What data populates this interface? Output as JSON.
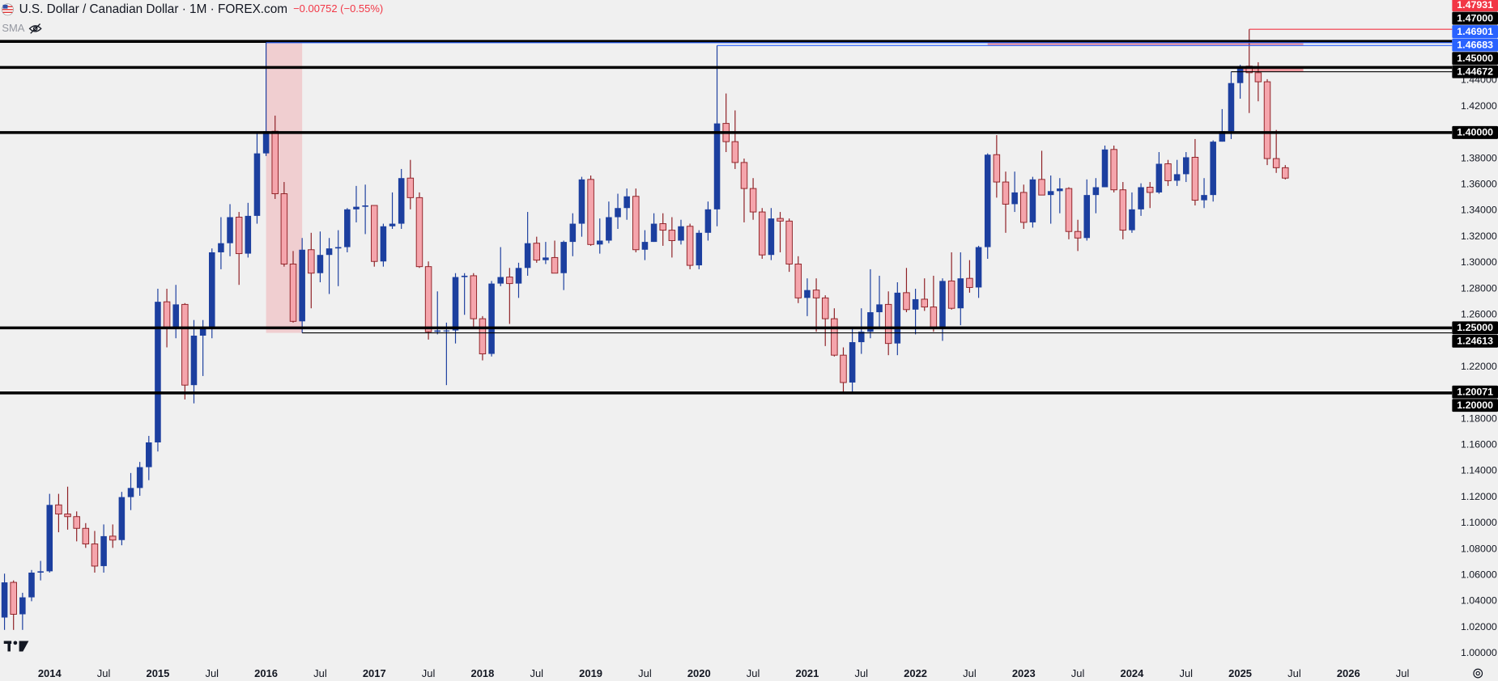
{
  "chart_data": {
    "type": "candlestick",
    "title": "U.S. Dollar / Canadian Dollar · 1M · FOREX.com",
    "subtitle": "−0.00752 (−0.55%)",
    "indicator": "SMA",
    "up_color": "#1c3f9f",
    "down_color": "#f5a5ac",
    "down_border": "#8e1f24",
    "ylim": [
      0.9912,
      1.5018
    ],
    "xlim": [
      "2013-08",
      "2026-12"
    ],
    "x": [
      "2013-08",
      "2013-09",
      "2013-10",
      "2013-11",
      "2013-12",
      "2014-01",
      "2014-02",
      "2014-03",
      "2014-04",
      "2014-05",
      "2014-06",
      "2014-07",
      "2014-08",
      "2014-09",
      "2014-10",
      "2014-11",
      "2014-12",
      "2015-01",
      "2015-02",
      "2015-03",
      "2015-04",
      "2015-05",
      "2015-06",
      "2015-07",
      "2015-08",
      "2015-09",
      "2015-10",
      "2015-11",
      "2015-12",
      "2016-01",
      "2016-02",
      "2016-03",
      "2016-04",
      "2016-05",
      "2016-06",
      "2016-07",
      "2016-08",
      "2016-09",
      "2016-10",
      "2016-11",
      "2016-12",
      "2017-01",
      "2017-02",
      "2017-03",
      "2017-04",
      "2017-05",
      "2017-06",
      "2017-07",
      "2017-08",
      "2017-09",
      "2017-10",
      "2017-11",
      "2017-12",
      "2018-01",
      "2018-02",
      "2018-03",
      "2018-04",
      "2018-05",
      "2018-06",
      "2018-07",
      "2018-08",
      "2018-09",
      "2018-10",
      "2018-11",
      "2018-12",
      "2019-01",
      "2019-02",
      "2019-03",
      "2019-04",
      "2019-05",
      "2019-06",
      "2019-07",
      "2019-08",
      "2019-09",
      "2019-10",
      "2019-11",
      "2019-12",
      "2020-01",
      "2020-02",
      "2020-03",
      "2020-04",
      "2020-05",
      "2020-06",
      "2020-07",
      "2020-08",
      "2020-09",
      "2020-10",
      "2020-11",
      "2020-12",
      "2021-01",
      "2021-02",
      "2021-03",
      "2021-04",
      "2021-05",
      "2021-06",
      "2021-07",
      "2021-08",
      "2021-09",
      "2021-10",
      "2021-11",
      "2021-12",
      "2022-01",
      "2022-02",
      "2022-03",
      "2022-04",
      "2022-05",
      "2022-06",
      "2022-07",
      "2022-08",
      "2022-09",
      "2022-10",
      "2022-11",
      "2022-12",
      "2023-01",
      "2023-02",
      "2023-03",
      "2023-04",
      "2023-05",
      "2023-06",
      "2023-07",
      "2023-08",
      "2023-09",
      "2023-10",
      "2023-11",
      "2023-12",
      "2024-01",
      "2024-02",
      "2024-03",
      "2024-04",
      "2024-05",
      "2024-06",
      "2024-07",
      "2024-08",
      "2024-09",
      "2024-10",
      "2024-11",
      "2024-12",
      "2025-01",
      "2025-02",
      "2025-03",
      "2025-04",
      "2025-05",
      "2025-06"
    ],
    "open": [
      1.0275,
      1.0545,
      1.03,
      1.043,
      1.062,
      1.063,
      1.114,
      1.107,
      1.105,
      1.096,
      1.084,
      1.067,
      1.09,
      1.087,
      1.12,
      1.127,
      1.143,
      1.162,
      1.27,
      1.25,
      1.268,
      1.206,
      1.244,
      1.249,
      1.308,
      1.315,
      1.335,
      1.307,
      1.336,
      1.384,
      1.401,
      1.353,
      1.299,
      1.255,
      1.31,
      1.292,
      1.306,
      1.311,
      1.312,
      1.341,
      1.343,
      1.344,
      1.301,
      1.328,
      1.33,
      1.365,
      1.35,
      1.297,
      1.247,
      1.248,
      1.248,
      1.289,
      1.29,
      1.257,
      1.23,
      1.284,
      1.289,
      1.284,
      1.296,
      1.315,
      1.302,
      1.304,
      1.292,
      1.316,
      1.33,
      1.364,
      1.314,
      1.317,
      1.335,
      1.342,
      1.351,
      1.31,
      1.316,
      1.33,
      1.325,
      1.317,
      1.328,
      1.298,
      1.323,
      1.341,
      1.407,
      1.393,
      1.377,
      1.357,
      1.339,
      1.306,
      1.334,
      1.332,
      1.299,
      1.273,
      1.279,
      1.273,
      1.257,
      1.229,
      1.208,
      1.239,
      1.247,
      1.262,
      1.268,
      1.238,
      1.277,
      1.264,
      1.272,
      1.266,
      1.25,
      1.286,
      1.265,
      1.288,
      1.281,
      1.312,
      1.383,
      1.362,
      1.345,
      1.354,
      1.331,
      1.364,
      1.352,
      1.355,
      1.357,
      1.324,
      1.319,
      1.352,
      1.358,
      1.387,
      1.356,
      1.325,
      1.341,
      1.358,
      1.354,
      1.376,
      1.363,
      1.368,
      1.381,
      1.348,
      1.352,
      1.393,
      1.401,
      1.438,
      1.451,
      1.446,
      1.439,
      1.38,
      1.373
    ],
    "high": [
      1.0612,
      1.056,
      1.0465,
      1.064,
      1.071,
      1.1225,
      1.1225,
      1.128,
      1.109,
      1.1,
      1.094,
      1.099,
      1.099,
      1.124,
      1.1385,
      1.147,
      1.167,
      1.28,
      1.28,
      1.283,
      1.269,
      1.256,
      1.256,
      1.311,
      1.335,
      1.345,
      1.339,
      1.346,
      1.4,
      1.46901,
      1.413,
      1.362,
      1.309,
      1.319,
      1.323,
      1.324,
      1.319,
      1.325,
      1.342,
      1.359,
      1.36,
      1.344,
      1.33,
      1.354,
      1.372,
      1.379,
      1.354,
      1.301,
      1.278,
      1.254,
      1.292,
      1.292,
      1.292,
      1.259,
      1.286,
      1.312,
      1.296,
      1.3,
      1.339,
      1.32,
      1.316,
      1.317,
      1.317,
      1.338,
      1.366,
      1.367,
      1.334,
      1.347,
      1.353,
      1.357,
      1.357,
      1.325,
      1.338,
      1.338,
      1.335,
      1.333,
      1.33,
      1.325,
      1.347,
      1.46683,
      1.43,
      1.417,
      1.38,
      1.365,
      1.342,
      1.342,
      1.339,
      1.334,
      1.305,
      1.288,
      1.288,
      1.275,
      1.265,
      1.235,
      1.249,
      1.265,
      1.295,
      1.29,
      1.278,
      1.285,
      1.296,
      1.28,
      1.288,
      1.29,
      1.288,
      1.308,
      1.308,
      1.302,
      1.313,
      1.384,
      1.398,
      1.37,
      1.37,
      1.36,
      1.366,
      1.386,
      1.367,
      1.365,
      1.358,
      1.333,
      1.364,
      1.365,
      1.39,
      1.39,
      1.362,
      1.354,
      1.361,
      1.362,
      1.385,
      1.379,
      1.379,
      1.385,
      1.395,
      1.365,
      1.394,
      1.418,
      1.44672,
      1.452,
      1.47931,
      1.454,
      1.441,
      1.402,
      1.375
    ],
    "low": [
      1.018,
      1.018,
      1.018,
      1.04,
      1.056,
      1.062,
      1.093,
      1.095,
      1.086,
      1.081,
      1.062,
      1.062,
      1.081,
      1.083,
      1.11,
      1.121,
      1.133,
      1.155,
      1.235,
      1.242,
      1.195,
      1.192,
      1.213,
      1.242,
      1.295,
      1.305,
      1.283,
      1.304,
      1.33,
      1.382,
      1.349,
      1.297,
      1.254,
      1.24613,
      1.265,
      1.285,
      1.276,
      1.282,
      1.308,
      1.331,
      1.322,
      1.297,
      1.297,
      1.326,
      1.326,
      1.341,
      1.296,
      1.241,
      1.245,
      1.206,
      1.238,
      1.26,
      1.251,
      1.225,
      1.228,
      1.282,
      1.253,
      1.273,
      1.29,
      1.3,
      1.299,
      1.292,
      1.279,
      1.305,
      1.32,
      1.313,
      1.307,
      1.315,
      1.326,
      1.333,
      1.308,
      1.302,
      1.316,
      1.313,
      1.304,
      1.314,
      1.295,
      1.295,
      1.317,
      1.328,
      1.385,
      1.372,
      1.331,
      1.333,
      1.303,
      1.302,
      1.308,
      1.293,
      1.269,
      1.259,
      1.247,
      1.236,
      1.228,
      1.201,
      1.20071,
      1.23,
      1.242,
      1.249,
      1.229,
      1.229,
      1.262,
      1.245,
      1.263,
      1.247,
      1.24,
      1.264,
      1.252,
      1.277,
      1.273,
      1.303,
      1.35,
      1.323,
      1.339,
      1.326,
      1.327,
      1.352,
      1.33,
      1.338,
      1.318,
      1.309,
      1.317,
      1.338,
      1.358,
      1.354,
      1.318,
      1.323,
      1.336,
      1.342,
      1.353,
      1.359,
      1.359,
      1.362,
      1.344,
      1.342,
      1.347,
      1.393,
      1.395,
      1.426,
      1.415,
      1.424,
      1.375,
      1.369,
      1.364
    ],
    "close": [
      1.0545,
      1.03,
      1.043,
      1.062,
      1.063,
      1.114,
      1.107,
      1.105,
      1.096,
      1.084,
      1.067,
      1.09,
      1.087,
      1.12,
      1.127,
      1.143,
      1.162,
      1.27,
      1.25,
      1.268,
      1.206,
      1.244,
      1.249,
      1.308,
      1.315,
      1.335,
      1.307,
      1.336,
      1.384,
      1.401,
      1.353,
      1.299,
      1.255,
      1.31,
      1.292,
      1.306,
      1.311,
      1.312,
      1.341,
      1.343,
      1.344,
      1.301,
      1.328,
      1.33,
      1.365,
      1.35,
      1.297,
      1.247,
      1.248,
      1.248,
      1.289,
      1.29,
      1.257,
      1.23,
      1.284,
      1.289,
      1.284,
      1.296,
      1.315,
      1.302,
      1.304,
      1.292,
      1.316,
      1.33,
      1.364,
      1.314,
      1.317,
      1.335,
      1.342,
      1.351,
      1.31,
      1.316,
      1.33,
      1.325,
      1.317,
      1.328,
      1.298,
      1.323,
      1.341,
      1.407,
      1.393,
      1.377,
      1.357,
      1.339,
      1.306,
      1.334,
      1.332,
      1.299,
      1.273,
      1.279,
      1.273,
      1.257,
      1.229,
      1.208,
      1.239,
      1.247,
      1.262,
      1.268,
      1.238,
      1.277,
      1.264,
      1.272,
      1.266,
      1.25,
      1.286,
      1.265,
      1.288,
      1.281,
      1.312,
      1.383,
      1.362,
      1.345,
      1.354,
      1.331,
      1.364,
      1.352,
      1.355,
      1.357,
      1.324,
      1.319,
      1.352,
      1.358,
      1.387,
      1.356,
      1.325,
      1.341,
      1.358,
      1.354,
      1.376,
      1.363,
      1.368,
      1.381,
      1.348,
      1.352,
      1.393,
      1.401,
      1.438,
      1.451,
      1.446,
      1.439,
      1.38,
      1.373,
      1.365
    ],
    "yticks": [
      {
        "value": 1.44,
        "label": "1.44000"
      },
      {
        "value": 1.42,
        "label": "1.42000"
      },
      {
        "value": 1.38,
        "label": "1.38000"
      },
      {
        "value": 1.36,
        "label": "1.36000"
      },
      {
        "value": 1.34,
        "label": "1.34000"
      },
      {
        "value": 1.32,
        "label": "1.32000"
      },
      {
        "value": 1.3,
        "label": "1.30000"
      },
      {
        "value": 1.28,
        "label": "1.28000"
      },
      {
        "value": 1.26,
        "label": "1.26000"
      },
      {
        "value": 1.22,
        "label": "1.22000"
      },
      {
        "value": 1.18,
        "label": "1.18000"
      },
      {
        "value": 1.16,
        "label": "1.16000"
      },
      {
        "value": 1.14,
        "label": "1.14000"
      },
      {
        "value": 1.12,
        "label": "1.12000"
      },
      {
        "value": 1.1,
        "label": "1.10000"
      },
      {
        "value": 1.08,
        "label": "1.08000"
      },
      {
        "value": 1.06,
        "label": "1.06000"
      },
      {
        "value": 1.04,
        "label": "1.04000"
      },
      {
        "value": 1.02,
        "label": "1.02000"
      },
      {
        "value": 1.0,
        "label": "1.00000"
      }
    ],
    "xticks": [
      {
        "value": "2014-01",
        "label": "2014"
      },
      {
        "value": "2014-07",
        "label": "Jul"
      },
      {
        "value": "2015-01",
        "label": "2015"
      },
      {
        "value": "2015-07",
        "label": "Jul"
      },
      {
        "value": "2016-01",
        "label": "2016"
      },
      {
        "value": "2016-07",
        "label": "Jul"
      },
      {
        "value": "2017-01",
        "label": "2017"
      },
      {
        "value": "2017-07",
        "label": "Jul"
      },
      {
        "value": "2018-01",
        "label": "2018"
      },
      {
        "value": "2018-07",
        "label": "Jul"
      },
      {
        "value": "2019-01",
        "label": "2019"
      },
      {
        "value": "2019-07",
        "label": "Jul"
      },
      {
        "value": "2020-01",
        "label": "2020"
      },
      {
        "value": "2020-07",
        "label": "Jul"
      },
      {
        "value": "2021-01",
        "label": "2021"
      },
      {
        "value": "2021-07",
        "label": "Jul"
      },
      {
        "value": "2022-01",
        "label": "2022"
      },
      {
        "value": "2022-07",
        "label": "Jul"
      },
      {
        "value": "2023-01",
        "label": "2023"
      },
      {
        "value": "2023-07",
        "label": "Jul"
      },
      {
        "value": "2024-01",
        "label": "2024"
      },
      {
        "value": "2024-07",
        "label": "Jul"
      },
      {
        "value": "2025-01",
        "label": "2025"
      },
      {
        "value": "2025-07",
        "label": "Jul"
      },
      {
        "value": "2026-01",
        "label": "2026"
      },
      {
        "value": "2026-07",
        "label": "Jul"
      }
    ],
    "levels": [
      {
        "value": 1.47931,
        "label": "1.47931",
        "color": "#f23645",
        "from": "2025-02",
        "style": "thin"
      },
      {
        "value": 1.47,
        "label": "1.47000",
        "color": "#000000",
        "style": "thick"
      },
      {
        "value": 1.46901,
        "label": "1.46901",
        "color": "#2962ff",
        "from": "2016-01",
        "style": "thin"
      },
      {
        "value": 1.46683,
        "label": "1.46683",
        "color": "#2962ff",
        "from": "2020-03",
        "style": "thin"
      },
      {
        "value": 1.45,
        "label": "1.45000",
        "color": "#000000",
        "style": "thick"
      },
      {
        "value": 1.44672,
        "label": "1.44672",
        "color": "#000000",
        "from": "2024-12",
        "style": "thin"
      },
      {
        "value": 1.4,
        "label": "1.40000",
        "color": "#000000",
        "style": "thick"
      },
      {
        "value": 1.25,
        "label": "1.25000",
        "color": "#000000",
        "style": "thick"
      },
      {
        "value": 1.24613,
        "label": "1.24613",
        "color": "#000000",
        "from": "2016-05",
        "style": "thin"
      },
      {
        "value": 1.20071,
        "label": "1.20071",
        "color": "#000000",
        "from": "2021-06",
        "style": "thin"
      },
      {
        "value": 1.2,
        "label": "1.20000",
        "color": "#000000",
        "style": "thick"
      }
    ],
    "zones": [
      {
        "x": [
          "2016-01",
          "2016-05"
        ],
        "y": [
          1.24613,
          1.46901
        ],
        "color": "rgba(242,54,69,0.18)"
      },
      {
        "x": [
          "2022-09",
          "2025-08"
        ],
        "y": [
          1.46683,
          1.46901
        ],
        "color": "rgba(242,54,69,0.45)"
      },
      {
        "x": [
          "2025-01",
          "2025-08"
        ],
        "y": [
          1.44672,
          1.45
        ],
        "color": "rgba(242,54,69,0.45)"
      }
    ]
  }
}
